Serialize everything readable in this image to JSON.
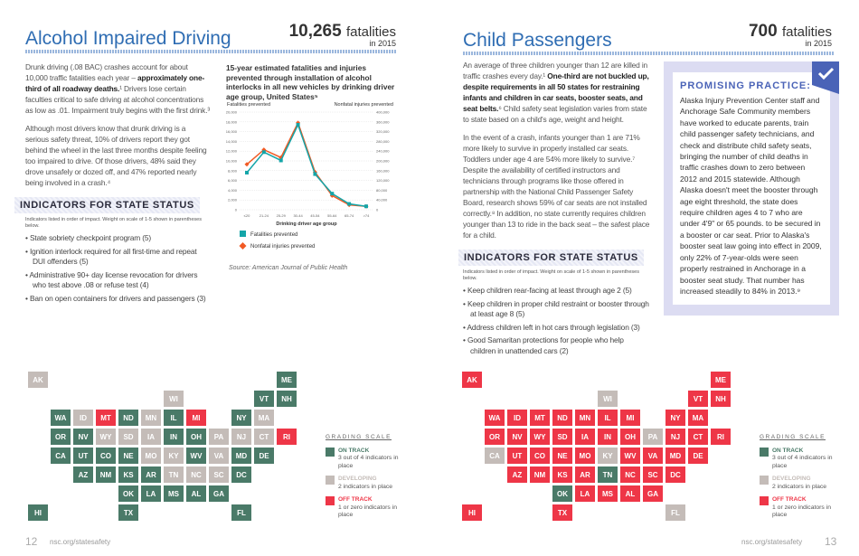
{
  "colors": {
    "on_track": "#4a7a68",
    "developing": "#c4bcb8",
    "off_track": "#ee3647",
    "title": "#2f6db3",
    "fatal_series": "#14a5a8",
    "injury_series": "#f15a24"
  },
  "left": {
    "title": "Alcohol Impaired Driving",
    "stat": {
      "number": "10,265",
      "unit": "fatalities",
      "year": "in 2015"
    },
    "para1": {
      "a": "Drunk driving (.08 BAC) crashes account for about 10,000 traffic fatalities each year – ",
      "b": "approximately one-third of all roadway deaths.",
      "c": "¹ Drivers lose certain faculties critical to safe driving at alcohol concentrations as low as .01. Impairment truly begins with the first drink.³"
    },
    "para2": "Although most drivers know that drunk driving is a serious safety threat, 10% of drivers report they got behind the wheel in the last three months despite feeling too impaired to drive. Of those drivers, 48% said they drove unsafely or dozed off, and 47% reported nearly being involved in a crash.⁴",
    "indicators_title": "INDICATORS FOR STATE STATUS",
    "indicators_note": "Indicators listed in order of impact. Weight on scale of 1-5 shown in parentheses below.",
    "indicators": [
      "State sobriety checkpoint program (5)",
      "Ignition interlock required for all first-time and repeat DUI offenders (5)",
      "Administrative 90+ day license revocation for drivers who test above .08 or refuse test (4)",
      "Ban on open containers for drivers and passengers (3)"
    ],
    "source": "Source: American Journal of Public Health",
    "map": {
      "off_track": [
        "MT",
        "MI",
        "RI"
      ],
      "developing": [
        "ID",
        "WY",
        "SD",
        "MN",
        "WI",
        "IA",
        "MO",
        "KY",
        "TN",
        "VA",
        "NC",
        "SC",
        "PA",
        "NJ",
        "MA",
        "CT",
        "AK"
      ]
    },
    "page_number": "12",
    "url": "nsc.org/statesafety"
  },
  "chart_data": {
    "type": "line",
    "title": "15-year estimated fatalities and injuries prevented through installation of alcohol interlocks in all new vehicles by drinking driver age group, United States⁵",
    "xlabel": "Drinking driver age group",
    "ylabel_left": "Fatalities prevented",
    "ylabel_right": "Nonfatal injuries prevented",
    "categories": [
      "≤20",
      "21-24",
      "25-29",
      "30-44",
      "45-54",
      "55-64",
      "65-74",
      ">74"
    ],
    "ylim_left": [
      0,
      20000
    ],
    "ylim_right": [
      0,
      400000
    ],
    "yticks_left": [
      "0",
      "2,000",
      "4,000",
      "6,000",
      "8,000",
      "10,000",
      "12,000",
      "14,000",
      "16,000",
      "18,000",
      "20,000"
    ],
    "yticks_right": [
      "0",
      "40,000",
      "80,000",
      "120,000",
      "160,000",
      "200,000",
      "240,000",
      "280,000",
      "320,000",
      "360,000",
      "400,000"
    ],
    "series": [
      {
        "name": "Fatalities prevented",
        "axis": "left",
        "values": [
          7600,
          11800,
          10100,
          17400,
          7300,
          3300,
          1200,
          700
        ]
      },
      {
        "name": "Nonfatal injuries prevented",
        "axis": "right",
        "values": [
          186000,
          246000,
          214000,
          356000,
          154000,
          58000,
          20000,
          14000
        ]
      }
    ],
    "grid": "horizontal",
    "legend": "bottom"
  },
  "right": {
    "title": "Child Passengers",
    "stat": {
      "number": "700",
      "unit": "fatalities",
      "year": "in 2015"
    },
    "para1": {
      "a": "An average of three children younger than 12 are killed in traffic crashes every day.¹ ",
      "b": "One-third are not buckled up, despite requirements in all 50 states for restraining infants and children in car seats, booster seats, and seat belts.",
      "c": "⁶ Child safety seat legislation varies from state to state based on a child's age, weight and height."
    },
    "para2": "In the event of a crash, infants younger than 1 are 71% more likely to survive in properly installed car seats. Toddlers under age 4 are 54% more likely to survive.⁷ Despite the availability of certified instructors and technicians through programs like those offered in partnership with the National Child Passenger Safety Board, research shows 59% of car seats are not installed correctly.⁸ In addition, no state currently requires children younger than 13 to ride in the back seat – the safest place for a child.",
    "indicators_title": "INDICATORS FOR STATE STATUS",
    "indicators_note": "Indicators listed in order of impact. Weight on scale of 1-5 shown in parentheses below.",
    "indicators": [
      "Keep children rear-facing at least through age 2 (5)",
      "Keep children in proper child restraint or booster through at least age 8 (5)",
      "Address children left in hot cars through legislation (3)",
      "Good Samaritan protections for people who help children in unattended cars (2)"
    ],
    "promising": {
      "heading": "PROMISING PRACTICE:",
      "icon": "checkmark-icon",
      "text": "Alaska Injury Prevention Center staff and Anchorage Safe Community members have worked to educate parents, train child passenger safety technicians, and check and distribute child safety seats, bringing the number of child deaths in traffic crashes down to zero between 2012 and 2015 statewide. Although Alaska doesn't meet the booster through age eight threshold, the state does require children ages 4 to 7 who are under 4'9\" or 65 pounds. to be secured in a booster or car seat. Prior to Alaska's booster seat law going into effect in 2009, only 22% of 7-year-olds were seen properly restrained in Anchorage in a booster seat study. That number has increased steadily to 84% in 2013.⁹"
    },
    "map": {
      "on_track": [
        "OK",
        "TN"
      ],
      "developing": [
        "CA",
        "WI",
        "PA",
        "KY",
        "FL"
      ],
      "default": "off_track"
    },
    "page_number": "13",
    "url": "nsc.org/statesafety"
  },
  "legend": {
    "heading": "GRADING SCALE",
    "items": [
      {
        "label": "ON TRACK",
        "desc": "3 out of 4 indicators in place"
      },
      {
        "label": "DEVELOPING",
        "desc": "2 indicators in place"
      },
      {
        "label": "OFF TRACK",
        "desc": "1 or zero indicators in place"
      }
    ]
  }
}
